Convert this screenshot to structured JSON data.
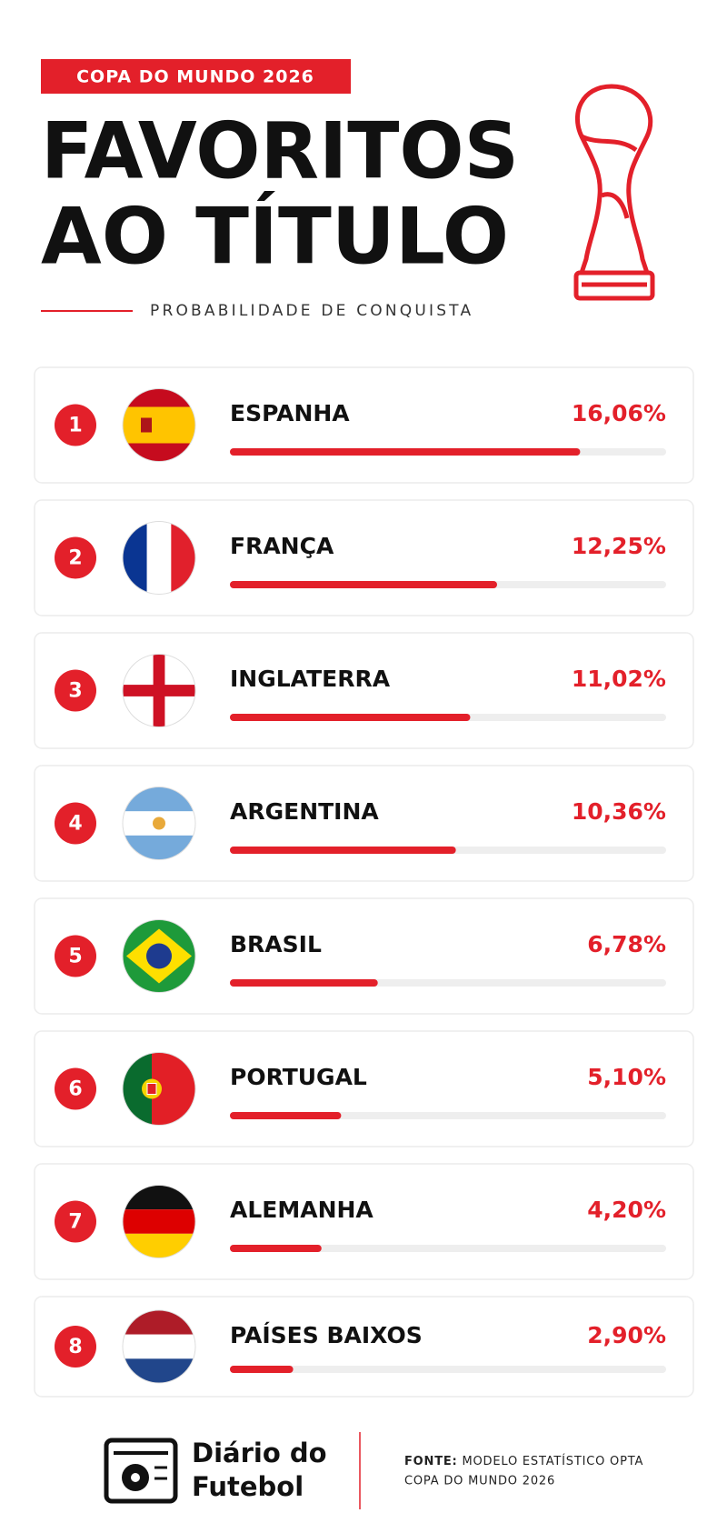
{
  "header": {
    "tag": "COPA DO MUNDO 2026",
    "title_line1": "FAVORITOS",
    "title_line2": "AO TÍTULO",
    "subtitle": "PROBABILIDADE DE CONQUISTA"
  },
  "chart_data": {
    "type": "bar",
    "ranks": [
      1,
      2,
      3,
      4,
      5,
      6,
      7,
      8
    ],
    "categories": [
      "ESPANHA",
      "FRANÇA",
      "INGLATERRA",
      "ARGENTINA",
      "BRASIL",
      "PORTUGAL",
      "ALEMANHA",
      "PAÍSES BAIXOS"
    ],
    "values": [
      16.06,
      12.25,
      11.02,
      10.36,
      6.78,
      5.1,
      4.2,
      2.9
    ],
    "value_labels": [
      "16,06%",
      "12,25%",
      "11,02%",
      "10,36%",
      "6,78%",
      "5,10%",
      "4,20%",
      "2,90%"
    ],
    "xlim": [
      0,
      20
    ],
    "color": "#e3202a"
  },
  "footer": {
    "brand_line1": "Diário do",
    "brand_line2": "Futebol",
    "source_label": "FONTE:",
    "source_line1": "MODELO ESTATÍSTICO OPTA",
    "source_line2": "COPA DO MUNDO 2026"
  }
}
